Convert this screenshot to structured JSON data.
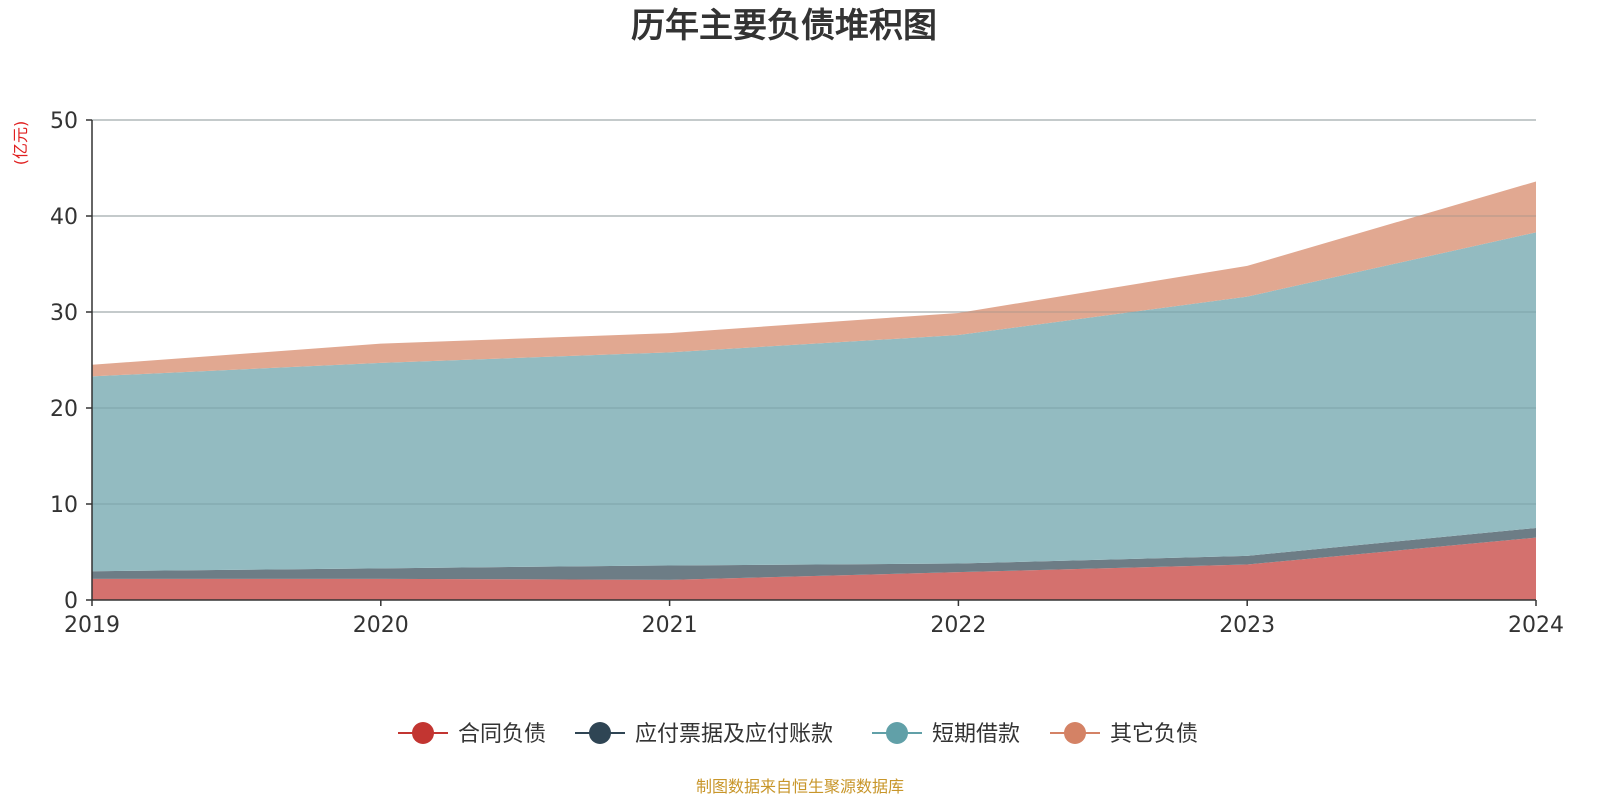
{
  "chart_data": {
    "type": "area",
    "stacked": true,
    "title": "历年主要负债堆积图",
    "ylabel": "(亿元)",
    "ylim": [
      0,
      50
    ],
    "yticks": [
      0,
      10,
      20,
      30,
      40,
      50
    ],
    "categories": [
      "2019",
      "2020",
      "2021",
      "2022",
      "2023",
      "2024"
    ],
    "grid": true,
    "legend_position": "bottom",
    "series": [
      {
        "name": "合同负债",
        "color": "#c23531",
        "area_color": "#d4716e",
        "values": [
          2.2,
          2.2,
          2.1,
          2.9,
          3.7,
          6.5
        ]
      },
      {
        "name": "应付票据及应付账款",
        "color": "#2f4554",
        "area_color": "#6d7d86",
        "values": [
          0.8,
          1.1,
          1.5,
          0.9,
          0.9,
          1.0
        ]
      },
      {
        "name": "短期借款",
        "color": "#61a0a8",
        "area_color": "#93bbc1",
        "values": [
          20.3,
          21.4,
          22.2,
          23.8,
          27.0,
          30.8
        ]
      },
      {
        "name": "其它负债",
        "color": "#d48265",
        "area_color": "#e1a891",
        "values": [
          1.2,
          2.0,
          2.0,
          2.3,
          3.2,
          5.3
        ]
      }
    ],
    "source": "制图数据来自恒生聚源数据库"
  }
}
